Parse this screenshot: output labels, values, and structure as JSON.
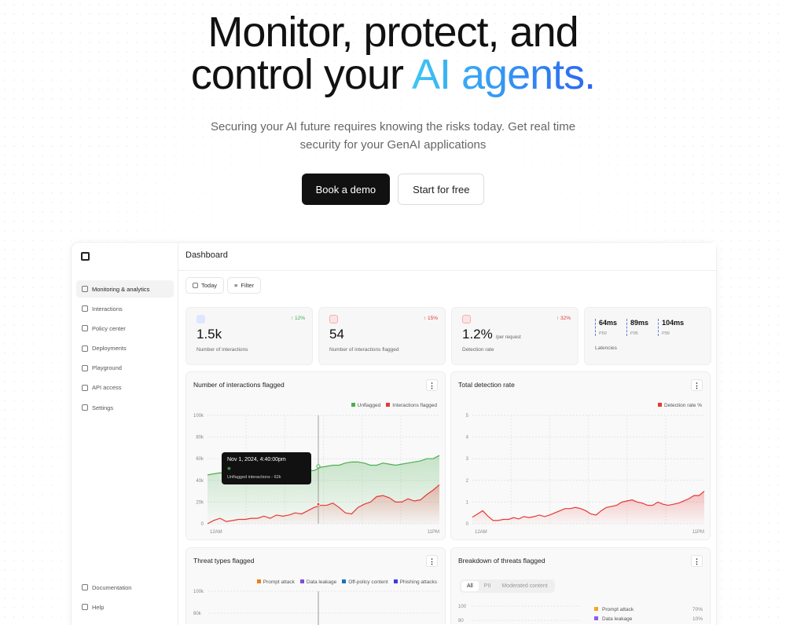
{
  "hero": {
    "line1": "Monitor, protect, and",
    "line2_plain": "control your ",
    "line2_accent": "AI agents.",
    "subtitle": "Securing your AI future requires knowing the risks today. Get real time security for your GenAI applications",
    "cta_primary": "Book a demo",
    "cta_secondary": "Start for free"
  },
  "dashboard": {
    "title": "Dashboard",
    "today": "Today",
    "filter": "Filter",
    "sidebar": {
      "items": [
        {
          "label": "Monitoring & analytics",
          "active": true
        },
        {
          "label": "Interactions"
        },
        {
          "label": "Policy center"
        },
        {
          "label": "Deployments"
        },
        {
          "label": "Playground"
        },
        {
          "label": "API access"
        },
        {
          "label": "Settings"
        }
      ],
      "bottom": [
        {
          "label": "Documentation"
        },
        {
          "label": "Help"
        }
      ]
    },
    "stats": [
      {
        "value": "1.5k",
        "label": "Number of interactions",
        "delta": "↑ 12%",
        "delta_color": "#3aa655"
      },
      {
        "value": "54",
        "label": "Number of interactions flagged",
        "delta": "↑ 15%",
        "delta_color": "#e03a3a"
      },
      {
        "value": "1.2%",
        "unit": "/per request",
        "label": "Detection rate",
        "delta": "↑ 32%",
        "delta_color": "#e03a3a"
      }
    ],
    "latencies": {
      "label": "Latencies",
      "items": [
        {
          "value": "64ms",
          "label": "P50"
        },
        {
          "value": "89ms",
          "label": "P95"
        },
        {
          "value": "104ms",
          "label": "P99"
        }
      ]
    },
    "tooltip": {
      "title": "Nov 1, 2024, 4:40:00pm",
      "text": "Unflagged interactions - 62k"
    },
    "breakdown": {
      "title": "Breakdown of threats flagged",
      "tabs": [
        "All",
        "PII",
        "Moderated content"
      ],
      "yticks": [
        "100",
        "80"
      ],
      "items": [
        {
          "label": "Prompt attack",
          "value": "70%",
          "color": "#f5a623"
        },
        {
          "label": "Data leakage",
          "value": "10%",
          "color": "#8a5cf5"
        }
      ]
    }
  },
  "chart_data": [
    {
      "type": "area",
      "title": "Number of interactions flagged",
      "ylim": [
        0,
        100000
      ],
      "yticks": [
        "0",
        "20k",
        "40k",
        "60k",
        "80k",
        "100k"
      ],
      "xticks": [
        "12AM",
        "11PM"
      ],
      "grid": true,
      "legend": "top-right",
      "series": [
        {
          "name": "Unflagged",
          "color": "#4caf50",
          "values": [
            45,
            46,
            47,
            46,
            45,
            46,
            47,
            47,
            48,
            49,
            50,
            51,
            52,
            53,
            53,
            51,
            49,
            49,
            52,
            53,
            54,
            54,
            56,
            57,
            57,
            56,
            54,
            54,
            56,
            55,
            54,
            55,
            56,
            57,
            58,
            60,
            60,
            63
          ]
        },
        {
          "name": "Interactions flagged",
          "color": "#e53935",
          "values": [
            0,
            3,
            5,
            2,
            3,
            4,
            4,
            5,
            5,
            7,
            5,
            8,
            7,
            8,
            10,
            9,
            12,
            15,
            17,
            17,
            19,
            15,
            10,
            9,
            15,
            18,
            20,
            25,
            26,
            24,
            20,
            20,
            23,
            21,
            22,
            27,
            31,
            36
          ]
        }
      ]
    },
    {
      "type": "area",
      "title": "Total detection rate",
      "ylim": [
        0,
        5
      ],
      "yticks": [
        "0",
        "1",
        "2",
        "3",
        "4",
        "5"
      ],
      "xticks": [
        "12AM",
        "11PM"
      ],
      "grid": true,
      "legend": "top-right",
      "series": [
        {
          "name": "Detection rate %",
          "color": "#e53935",
          "values": [
            0.3,
            0.45,
            0.6,
            0.35,
            0.15,
            0.15,
            0.2,
            0.2,
            0.28,
            0.22,
            0.33,
            0.28,
            0.33,
            0.4,
            0.33,
            0.4,
            0.5,
            0.6,
            0.7,
            0.7,
            0.75,
            0.7,
            0.6,
            0.45,
            0.4,
            0.6,
            0.75,
            0.8,
            0.85,
            1.0,
            1.05,
            1.1,
            1.0,
            0.95,
            0.85,
            0.85,
            1.0,
            0.9,
            0.85,
            0.9,
            0.95,
            1.05,
            1.15,
            1.3,
            1.3,
            1.5
          ]
        }
      ]
    },
    {
      "type": "bar",
      "title": "Threat types flagged",
      "ylim": [
        0,
        100000
      ],
      "yticks": [
        "80k",
        "100k"
      ],
      "grid": true,
      "legend": "top-right",
      "series": [
        {
          "name": "Prompt attack",
          "color": "#f07c1e"
        },
        {
          "name": "Data leakage",
          "color": "#7b4de0"
        },
        {
          "name": "Off-policy content",
          "color": "#1a73b8"
        },
        {
          "name": "Phishing attacks",
          "color": "#3b3be0"
        }
      ]
    }
  ]
}
